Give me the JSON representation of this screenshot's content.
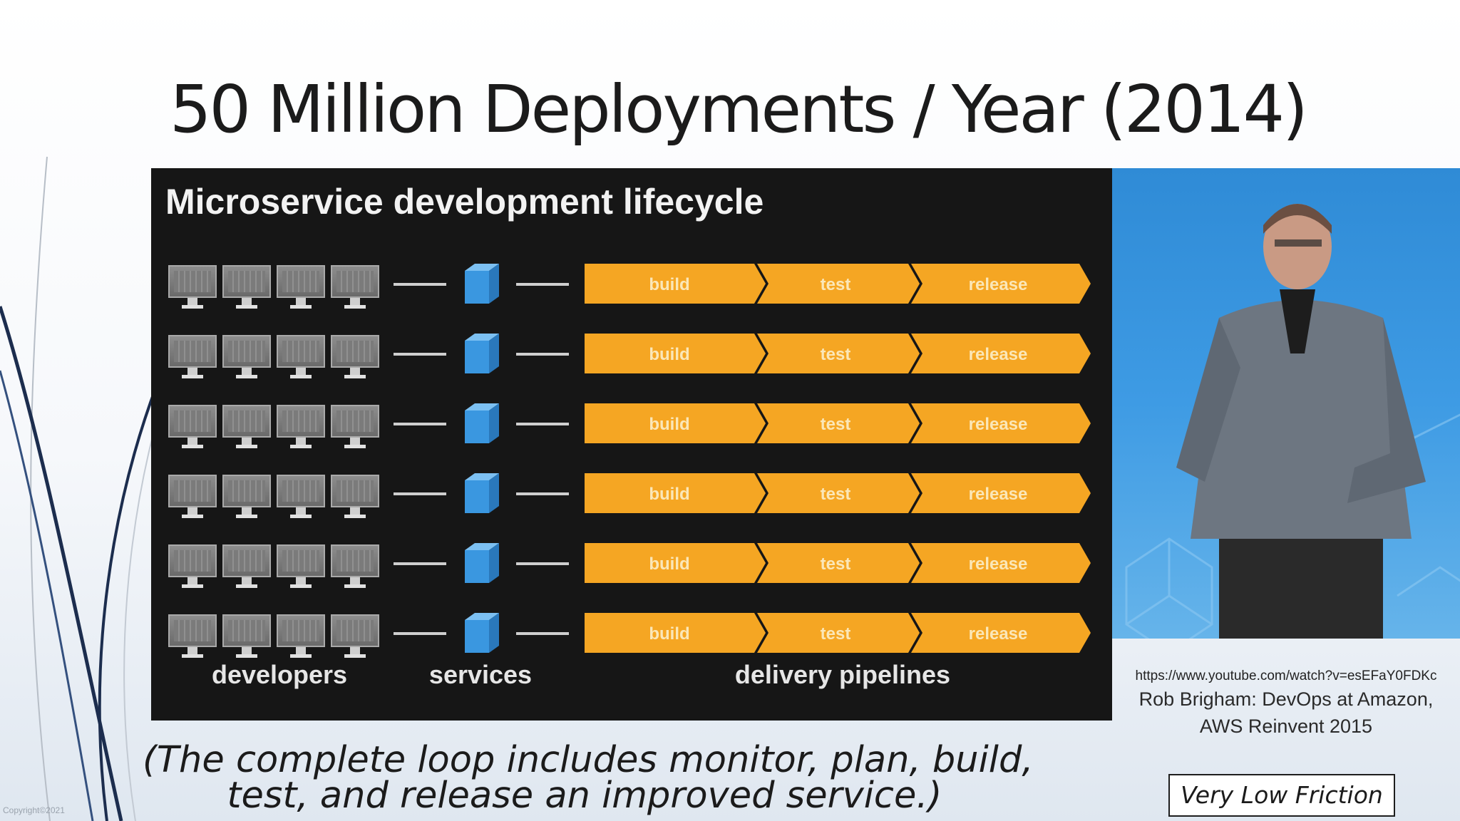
{
  "slide": {
    "title": "50 Million Deployments / Year (2014)",
    "copyright": "Copyright©2021"
  },
  "diagram": {
    "heading": "Microservice development lifecycle",
    "row_count": 6,
    "monitors_per_row": 4,
    "stages": [
      "build",
      "test",
      "release"
    ],
    "columns": {
      "developers": "developers",
      "services": "services",
      "pipelines": "delivery pipelines"
    },
    "colors": {
      "panel": "#161616",
      "pipeline": "#f5a623",
      "cube": "#3a97e0"
    },
    "icons": {
      "developer": "monitor-icon",
      "service": "cube-icon"
    }
  },
  "video": {
    "url": "https://www.youtube.com/watch?v=esEFaY0FDKc",
    "caption_line1": "Rob Brigham: DevOps at Amazon,",
    "caption_line2": "AWS Reinvent 2015"
  },
  "note": {
    "line1": "(The complete loop includes monitor, plan, build,",
    "line2": "test, and release an improved service.)"
  },
  "badge": {
    "label": "Very Low Friction"
  }
}
